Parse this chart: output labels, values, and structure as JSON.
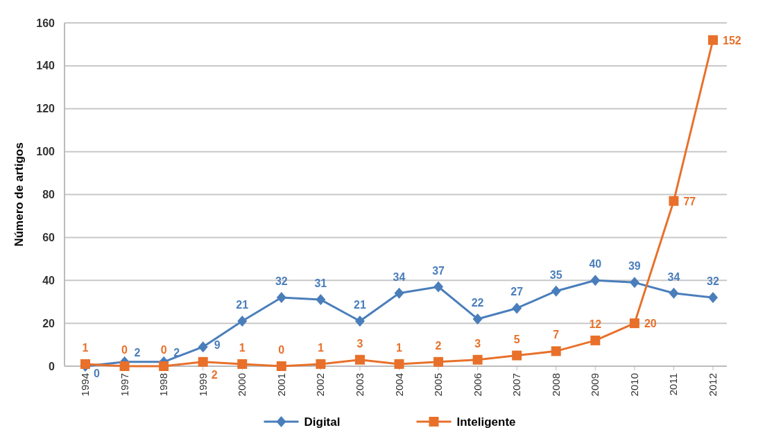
{
  "chart_data": {
    "type": "line",
    "ylabel": "Número de artigos",
    "categories": [
      "1994",
      "1997",
      "1998",
      "1999",
      "2000",
      "2001",
      "2002",
      "2003",
      "2004",
      "2005",
      "2006",
      "2007",
      "2008",
      "2009",
      "2010",
      "2011",
      "2012"
    ],
    "series": [
      {
        "name": "Digital",
        "color": "#4a7ebb",
        "marker": "diamond",
        "values": [
          0,
          2,
          2,
          9,
          21,
          32,
          31,
          21,
          34,
          37,
          22,
          27,
          35,
          40,
          39,
          34,
          32
        ]
      },
      {
        "name": "Inteligente",
        "color": "#e8702a",
        "marker": "square",
        "values": [
          1,
          0,
          0,
          2,
          1,
          0,
          1,
          3,
          1,
          2,
          3,
          5,
          7,
          12,
          20,
          77,
          152
        ]
      }
    ],
    "ylim": [
      0,
      160
    ],
    "yticks": [
      0,
      20,
      40,
      60,
      80,
      100,
      120,
      140,
      160
    ],
    "grid": "y",
    "legend": "bottom",
    "data_labels": true,
    "line_style": "solid"
  }
}
